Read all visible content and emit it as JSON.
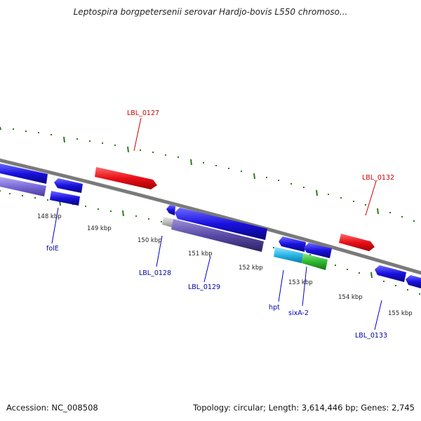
{
  "title": "Leptospira borgpetersenii serovar Hardjo-bovis L550 chromoso...",
  "footer": {
    "accession": "Accession: NC_008508",
    "topology": "Topology: circular; Length: 3,614,446 bp; Genes: 2,745"
  },
  "ticks": [
    "148 kbp",
    "149 kbp",
    "150 kbp",
    "151 kbp",
    "152 kbp",
    "153 kbp",
    "154 kbp",
    "155 kbp"
  ],
  "gene_labels": {
    "lbl_0127": "LBL_0127",
    "lbl_0132": "LBL_0132",
    "fole": "folE",
    "lbl_0128": "LBL_0128",
    "lbl_0129": "LBL_0129",
    "hpt": "hpt",
    "sixa2": "sixA-2",
    "lbl_0133": "LBL_0133"
  },
  "colors": {
    "forward_gene": "#e8101a",
    "reverse_gene": "#1a10e0",
    "rna_purple": "#5a4aa8",
    "cyan_gene": "#29b6e8",
    "green_gene": "#2fb82f",
    "gray_gene": "#bdbdbd",
    "backbone": "#7a7a7a",
    "ticks": "#2a7a1a"
  }
}
